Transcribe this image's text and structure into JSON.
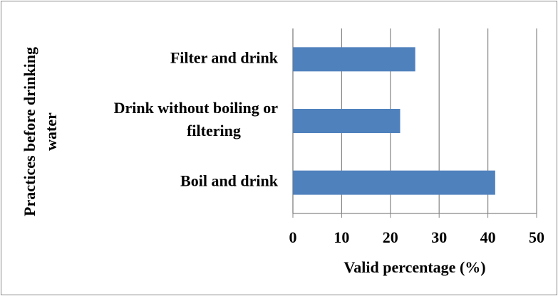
{
  "chart_data": {
    "type": "barh",
    "categories": [
      "Filter and drink",
      [
        "Drink without boiling or",
        "filtering"
      ],
      "Boil and drink"
    ],
    "values": [
      25.1,
      22,
      41.5
    ],
    "color": "#4f81bd",
    "x_label": "Valid percentage (%)",
    "y_label": [
      "Practices before drinking",
      "water"
    ],
    "xlim": [
      0,
      50
    ],
    "xticks": [
      0,
      10,
      20,
      30,
      40,
      50
    ],
    "grid": true
  }
}
